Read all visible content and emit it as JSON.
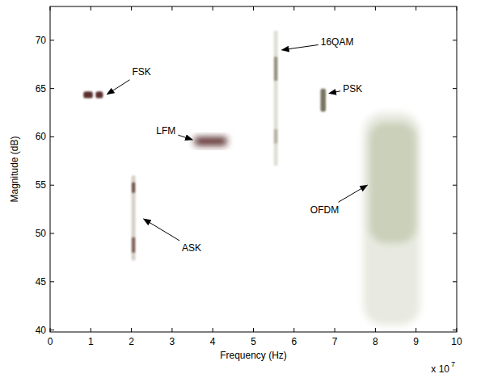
{
  "chart_data": {
    "type": "spectrogram",
    "xlabel": "Frequency (Hz)",
    "ylabel": "Magnitude (dB)",
    "x_multiplier": "x 10",
    "x_multiplier_exponent": "7",
    "xlim": [
      0,
      10
    ],
    "xticks": [
      0,
      1,
      2,
      3,
      4,
      5,
      6,
      7,
      8,
      9,
      10
    ],
    "ylim": [
      39.8,
      73.5
    ],
    "yticks": [
      40,
      45,
      50,
      55,
      60,
      65,
      70
    ],
    "grid": false,
    "series": [
      {
        "name": "FSK",
        "colors": [
          "#4e1f1f",
          "#4e1f1f"
        ],
        "blobs": [
          {
            "x": [
              0.82,
              1.05
            ],
            "y": [
              64.0,
              64.7
            ]
          },
          {
            "x": [
              1.12,
              1.3
            ],
            "y": [
              64.0,
              64.7
            ]
          }
        ],
        "label_x": 2.25,
        "label_y": 66.7,
        "arrow_x": 1.4,
        "arrow_y": 64.4
      },
      {
        "name": "LFM",
        "colors": [
          "#4e1f1f"
        ],
        "blobs": [
          {
            "x": [
              3.55,
              4.35
            ],
            "y": [
              59.1,
              60.0
            ]
          }
        ],
        "label_x": 2.85,
        "label_y": 60.6,
        "arrow_x": 3.5,
        "arrow_y": 59.7
      },
      {
        "name": "ASK",
        "colors": [
          "#d2cdc5",
          "#6e4c42",
          "#7c5c52"
        ],
        "blobs": [
          {
            "x": [
              2.0,
              2.1
            ],
            "y": [
              47.2,
              56.0
            ]
          },
          {
            "x": [
              2.01,
              2.09
            ],
            "y": [
              54.2,
              55.3
            ]
          },
          {
            "x": [
              2.01,
              2.09
            ],
            "y": [
              48.0,
              49.6
            ]
          }
        ],
        "label_x": 3.48,
        "label_y": 48.5,
        "arrow_x": 2.3,
        "arrow_y": 51.5
      },
      {
        "name": "16QAM",
        "colors": [
          "#dcdcd0",
          "#8c8a76",
          "#b4b2a2"
        ],
        "blobs": [
          {
            "x": [
              5.5,
              5.6
            ],
            "y": [
              57.0,
              71.0
            ]
          },
          {
            "x": [
              5.51,
              5.59
            ],
            "y": [
              65.8,
              68.3
            ]
          },
          {
            "x": [
              5.51,
              5.59
            ],
            "y": [
              59.3,
              60.8
            ]
          }
        ],
        "label_x": 7.06,
        "label_y": 69.8,
        "arrow_x": 5.7,
        "arrow_y": 69.0
      },
      {
        "name": "PSK",
        "colors": [
          "#6e6852"
        ],
        "blobs": [
          {
            "x": [
              6.65,
              6.78
            ],
            "y": [
              62.6,
              65.0
            ]
          }
        ],
        "label_x": 7.44,
        "label_y": 65.0,
        "arrow_x": 6.86,
        "arrow_y": 64.5
      },
      {
        "name": "OFDM",
        "colors": [
          "#e6e8de",
          "#c8cdb6"
        ],
        "blobs": [
          {
            "x": [
              7.7,
              9.1
            ],
            "y": [
              40.5,
              62.5
            ]
          },
          {
            "x": [
              7.85,
              9.0
            ],
            "y": [
              49.0,
              61.5
            ]
          }
        ],
        "label_x": 6.75,
        "label_y": 52.4,
        "arrow_x": 7.8,
        "arrow_y": 55.0
      }
    ]
  }
}
